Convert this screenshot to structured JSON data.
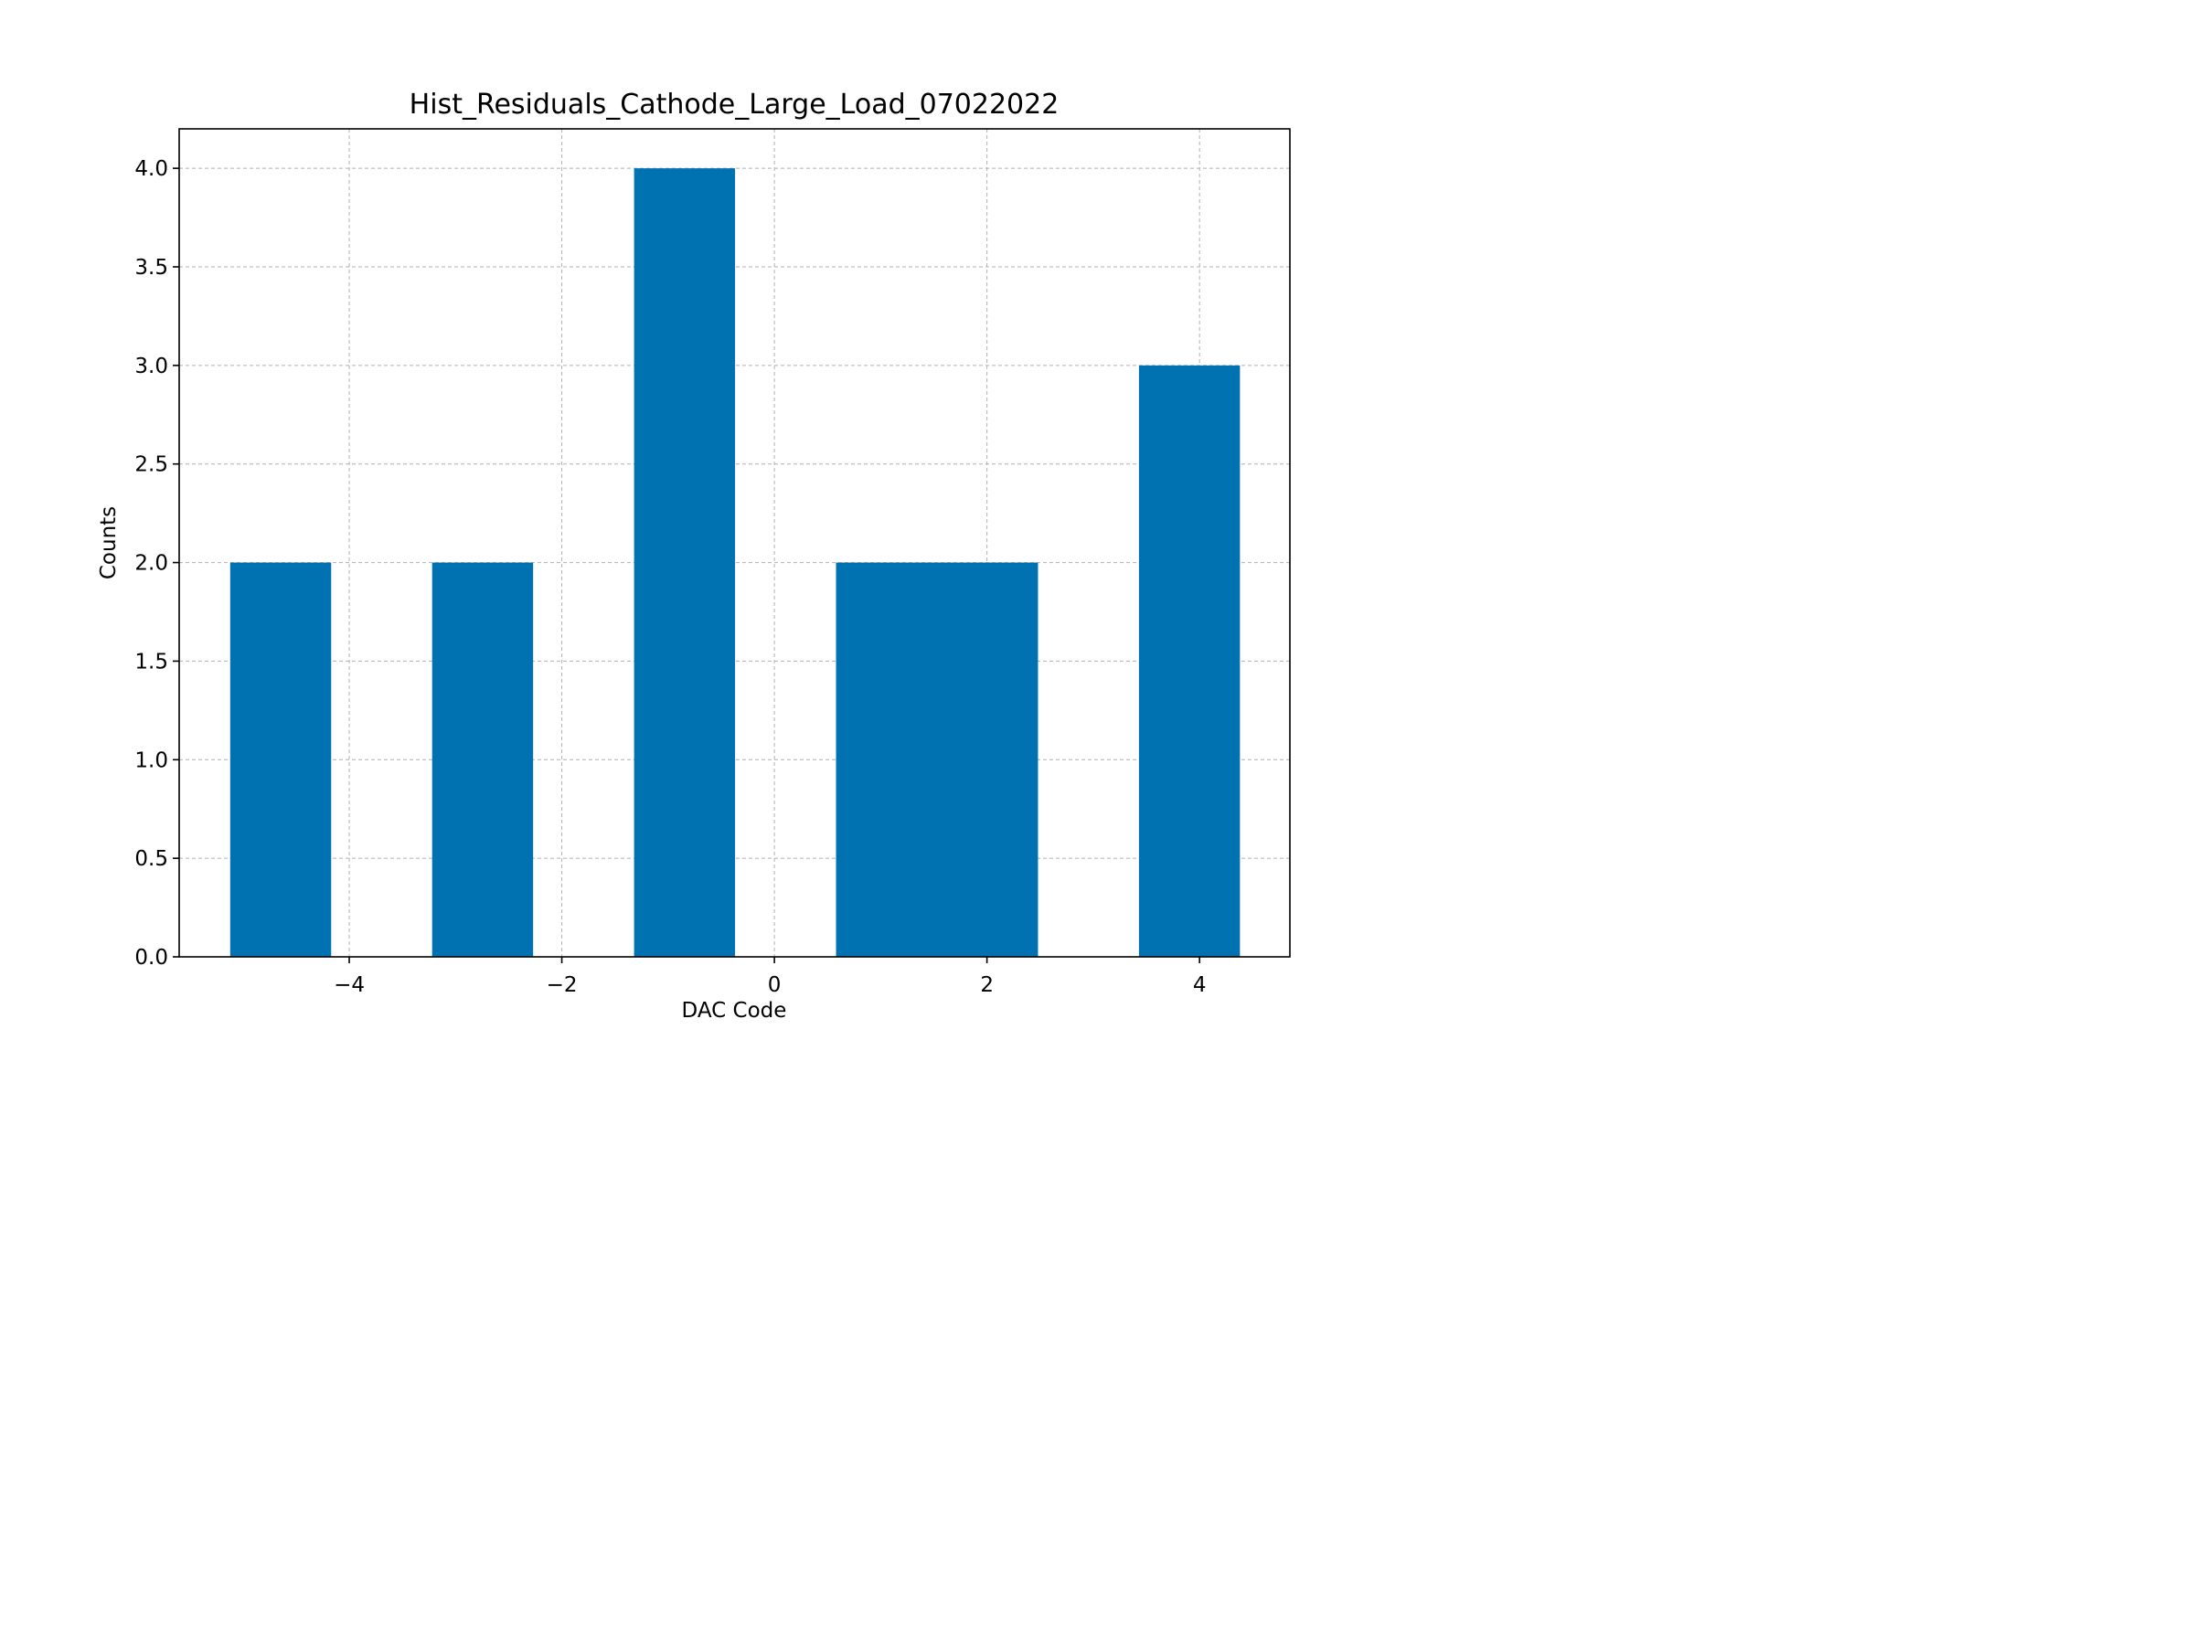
{
  "chart_data": {
    "type": "bar",
    "title": "Hist_Residuals_Cathode_Large_Load_07022022",
    "xlabel": "DAC Code",
    "ylabel": "Counts",
    "xlim": [
      -5.6,
      4.85
    ],
    "ylim": [
      0,
      4.2
    ],
    "xticks": [
      -4,
      -2,
      0,
      2,
      4
    ],
    "xtick_labels": [
      "−4",
      "−2",
      "0",
      "2",
      "4"
    ],
    "yticks": [
      0,
      0.5,
      1.0,
      1.5,
      2.0,
      2.5,
      3.0,
      3.5,
      4.0
    ],
    "ytick_labels": [
      "0.0",
      "0.5",
      "1.0",
      "1.5",
      "2.0",
      "2.5",
      "3.0",
      "3.5",
      "4.0"
    ],
    "grid": true,
    "bar_color": "#0072b2",
    "bins": [
      {
        "x0": -5.12,
        "x1": -4.17,
        "count": 2
      },
      {
        "x0": -3.22,
        "x1": -2.27,
        "count": 2
      },
      {
        "x0": -1.32,
        "x1": -0.37,
        "count": 4
      },
      {
        "x0": 0.58,
        "x1": 1.53,
        "count": 2
      },
      {
        "x0": 1.53,
        "x1": 2.48,
        "count": 2
      },
      {
        "x0": 3.43,
        "x1": 4.38,
        "count": 3
      }
    ]
  }
}
